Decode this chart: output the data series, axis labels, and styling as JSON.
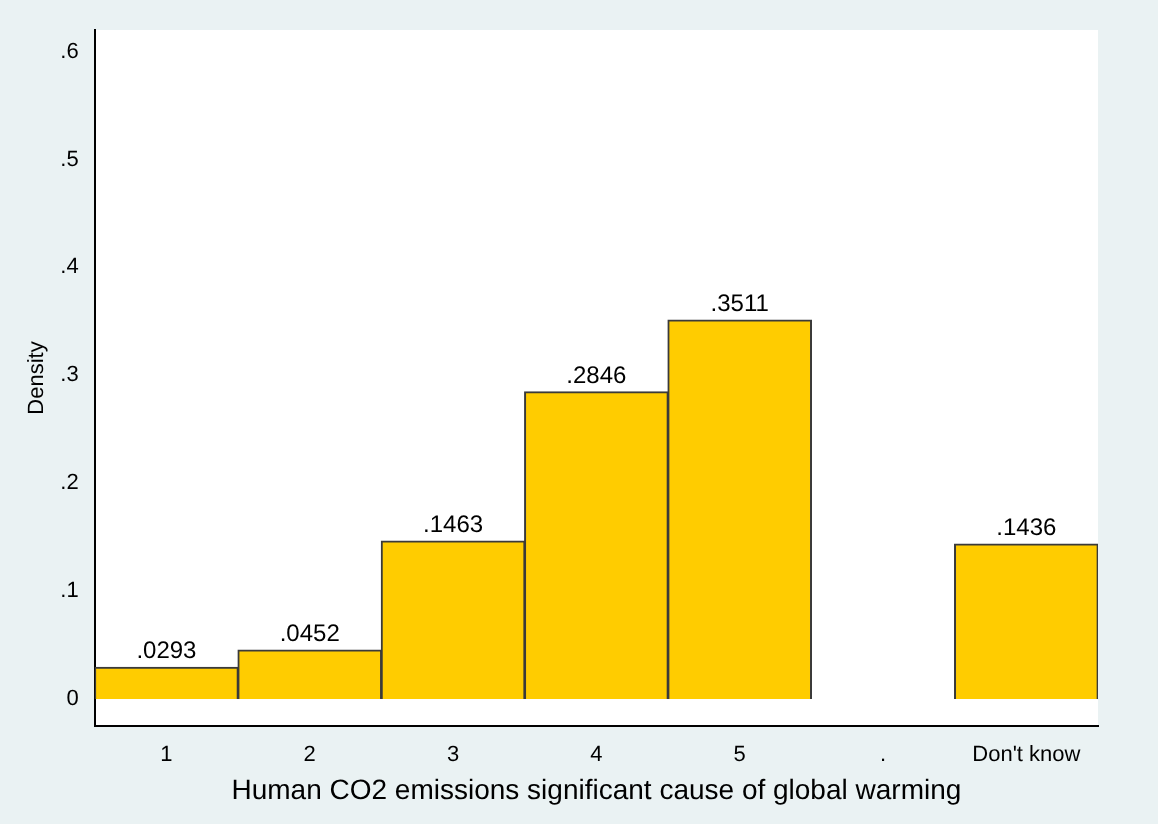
{
  "chart_data": {
    "type": "bar",
    "categories": [
      "1",
      "2",
      "3",
      "4",
      "5",
      ".",
      "Don't know"
    ],
    "values": [
      0.0293,
      0.0452,
      0.1463,
      0.2846,
      0.3511,
      null,
      0.1436
    ],
    "value_labels": [
      ".0293",
      ".0452",
      ".1463",
      ".2846",
      ".3511",
      null,
      ".1436"
    ],
    "color": "#ffcc00",
    "xlabel": "Human CO2 emissions significant cause of global warming",
    "ylabel": "Density",
    "ylim": [
      -0.025,
      0.62
    ],
    "yticks": [
      0,
      {
        "value": 0.1,
        "label": ".1"
      },
      {
        "value": 0.2,
        "label": ".2"
      },
      {
        "value": 0.3,
        "label": ".3"
      },
      {
        "value": 0.4,
        "label": ".4"
      },
      {
        "value": 0.5,
        "label": ".5"
      },
      {
        "value": 0.6,
        "label": ".6"
      }
    ]
  }
}
